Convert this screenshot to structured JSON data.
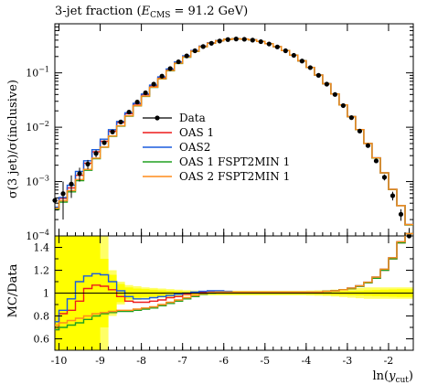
{
  "chart_data": {
    "type": "line",
    "title_prefix": "3-jet fraction (",
    "title_e": "E",
    "title_e_sub": "CMS",
    "title_suffix": " = 91.2 GeV)",
    "x": [
      -10.1,
      -9.9,
      -9.7,
      -9.5,
      -9.3,
      -9.1,
      -8.9,
      -8.7,
      -8.5,
      -8.3,
      -8.1,
      -7.9,
      -7.7,
      -7.5,
      -7.3,
      -7.1,
      -6.9,
      -6.7,
      -6.5,
      -6.3,
      -6.1,
      -5.9,
      -5.7,
      -5.5,
      -5.3,
      -5.1,
      -4.9,
      -4.7,
      -4.5,
      -4.3,
      -4.1,
      -3.9,
      -3.7,
      -3.5,
      -3.3,
      -3.1,
      -2.9,
      -2.7,
      -2.5,
      -2.3,
      -2.1,
      -1.9,
      -1.7,
      -1.5
    ],
    "xlim": [
      -10.1,
      -1.4
    ],
    "main_ylim": [
      0.0001,
      0.8
    ],
    "main_yscale": "log",
    "ratio_ylim": [
      0.5,
      1.5
    ],
    "xlabel_prefix": "ln(",
    "xlabel_var": "y",
    "xlabel_sub": "cut",
    "xlabel_suffix": ")",
    "xticks": [
      "-10",
      "-9",
      "-8",
      "-7",
      "-6",
      "-5",
      "-4",
      "-3",
      "-2"
    ],
    "main_ylabel": "σ(3 jet)/σ(inclusive)",
    "main_yticks": [
      {
        "base": "10",
        "exp": "−4",
        "value": 0.0001
      },
      {
        "base": "10",
        "exp": "−3",
        "value": 0.001
      },
      {
        "base": "10",
        "exp": "−2",
        "value": 0.01
      },
      {
        "base": "10",
        "exp": "−1",
        "value": 0.1
      }
    ],
    "ratio_ylabel": "MC/Data",
    "ratio_yticks": [
      "0.6",
      "0.8",
      "1",
      "1.2",
      "1.4"
    ],
    "legend_position": "center-left",
    "data": {
      "name": "Data",
      "color": "#000000",
      "values": [
        0.00045,
        0.0006,
        0.0009,
        0.0014,
        0.0021,
        0.0033,
        0.0052,
        0.0082,
        0.0125,
        0.019,
        0.029,
        0.043,
        0.062,
        0.087,
        0.12,
        0.16,
        0.205,
        0.255,
        0.305,
        0.35,
        0.385,
        0.41,
        0.42,
        0.415,
        0.4,
        0.375,
        0.34,
        0.3,
        0.255,
        0.21,
        0.165,
        0.125,
        0.09,
        0.062,
        0.04,
        0.025,
        0.015,
        0.0085,
        0.0046,
        0.0024,
        0.0012,
        0.00055,
        0.00025,
        0.0001
      ],
      "errors": [
        0.00035,
        0.0004,
        0.0004,
        0.0004,
        0.0004,
        0.0005,
        0.0005,
        0.0006,
        0.0007,
        0.0008,
        0.001,
        0.0012,
        0.0014,
        0.0016,
        0.0019,
        0.0022,
        0.0025,
        0.0028,
        0.003,
        0.0032,
        0.0033,
        0.0034,
        0.0035,
        0.0035,
        0.0034,
        0.0033,
        0.0032,
        0.003,
        0.0028,
        0.0025,
        0.0022,
        0.0019,
        0.0016,
        0.0013,
        0.001,
        0.0008,
        0.0006,
        0.0004,
        0.0003,
        0.0002,
        0.00015,
        0.0001,
        6e-05,
        4e-05
      ]
    },
    "series": [
      {
        "name": "OAS 1",
        "color": "#ee1c1c",
        "ratio": [
          0.68,
          0.82,
          0.85,
          0.93,
          1.04,
          1.07,
          1.06,
          1.03,
          0.97,
          0.93,
          0.92,
          0.92,
          0.93,
          0.94,
          0.96,
          0.97,
          0.99,
          1.0,
          1.01,
          1.015,
          1.015,
          1.01,
          1.01,
          1.01,
          1.01,
          1.01,
          1.01,
          1.01,
          1.01,
          1.01,
          1.01,
          1.01,
          1.01,
          1.015,
          1.02,
          1.03,
          1.04,
          1.06,
          1.09,
          1.13,
          1.2,
          1.3,
          1.44,
          1.6
        ]
      },
      {
        "name": "OAS2",
        "color": "#1a5cde",
        "ratio": [
          0.75,
          0.85,
          0.95,
          1.1,
          1.15,
          1.17,
          1.16,
          1.1,
          1.02,
          0.97,
          0.95,
          0.95,
          0.96,
          0.97,
          0.98,
          0.99,
          1.0,
          1.01,
          1.015,
          1.02,
          1.02,
          1.015,
          1.01,
          1.01,
          1.01,
          1.01,
          1.01,
          1.01,
          1.01,
          1.01,
          1.01,
          1.01,
          1.01,
          1.015,
          1.02,
          1.03,
          1.045,
          1.065,
          1.095,
          1.14,
          1.21,
          1.31,
          1.45,
          1.62
        ]
      },
      {
        "name": "OAS 1 FSPT2MIN 1",
        "color": "#20a020",
        "ratio": [
          0.68,
          0.7,
          0.72,
          0.74,
          0.77,
          0.8,
          0.82,
          0.83,
          0.84,
          0.84,
          0.85,
          0.86,
          0.87,
          0.89,
          0.91,
          0.93,
          0.95,
          0.97,
          0.99,
          1.0,
          1.01,
          1.01,
          1.01,
          1.01,
          1.01,
          1.01,
          1.01,
          1.01,
          1.01,
          1.01,
          1.01,
          1.01,
          1.01,
          1.015,
          1.02,
          1.03,
          1.04,
          1.06,
          1.09,
          1.13,
          1.2,
          1.3,
          1.44,
          1.6
        ]
      },
      {
        "name": "OAS 2 FSPT2MIN 1",
        "color": "#ff8c1a",
        "ratio": [
          0.72,
          0.74,
          0.76,
          0.78,
          0.8,
          0.82,
          0.83,
          0.84,
          0.85,
          0.85,
          0.86,
          0.87,
          0.88,
          0.9,
          0.92,
          0.94,
          0.96,
          0.98,
          0.995,
          1.005,
          1.01,
          1.01,
          1.01,
          1.01,
          1.01,
          1.01,
          1.01,
          1.01,
          1.01,
          1.01,
          1.01,
          1.01,
          1.01,
          1.015,
          1.02,
          1.03,
          1.045,
          1.065,
          1.095,
          1.14,
          1.21,
          1.31,
          1.45,
          1.62
        ]
      }
    ],
    "uncertainty_band": {
      "color": "#ffff00",
      "inner_half_width": [
        0.5,
        0.5,
        0.5,
        0.5,
        0.5,
        0.5,
        0.3,
        0.16,
        0.08,
        0.05,
        0.04,
        0.035,
        0.03,
        0.025,
        0.02,
        0.017,
        0.015,
        0.012,
        0.01,
        0.01,
        0.01,
        0.01,
        0.01,
        0.01,
        0.01,
        0.01,
        0.01,
        0.01,
        0.01,
        0.01,
        0.01,
        0.01,
        0.012,
        0.014,
        0.016,
        0.018,
        0.02,
        0.022,
        0.025,
        0.028,
        0.03,
        0.032,
        0.034,
        0.034
      ],
      "outer_half_width": [
        0.5,
        0.5,
        0.5,
        0.5,
        0.5,
        0.5,
        0.5,
        0.2,
        0.1,
        0.07,
        0.06,
        0.05,
        0.045,
        0.04,
        0.035,
        0.03,
        0.025,
        0.022,
        0.02,
        0.02,
        0.02,
        0.02,
        0.02,
        0.02,
        0.02,
        0.02,
        0.02,
        0.02,
        0.02,
        0.02,
        0.02,
        0.022,
        0.024,
        0.026,
        0.03,
        0.035,
        0.04,
        0.045,
        0.05,
        0.05,
        0.05,
        0.05,
        0.05,
        0.05
      ]
    }
  }
}
